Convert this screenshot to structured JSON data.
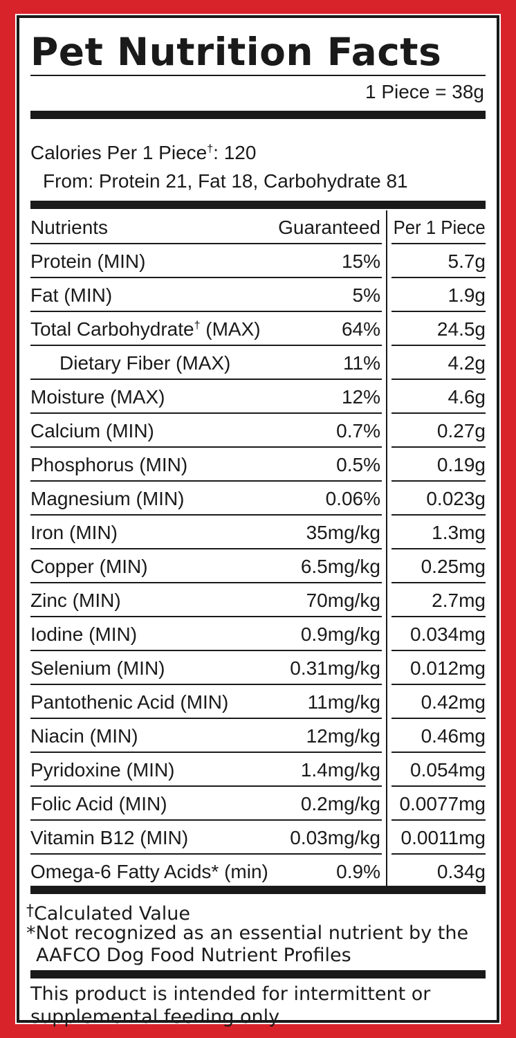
{
  "title": "Pet Nutrition Facts",
  "serving": "1 Piece = 38g",
  "calories": {
    "line_prefix": "Calories Per 1 Piece",
    "dagger": "†",
    "line_suffix": ": 120",
    "from": "From: Protein 21, Fat 18, Carbohydrate 81"
  },
  "table": {
    "headers": {
      "nutrient": "Nutrients",
      "guaranteed": "Guaranteed",
      "per_piece": "Per 1 Piece"
    },
    "rows": [
      {
        "name": "Protein (MIN)",
        "guaranteed": "15%",
        "per_piece": "5.7g"
      },
      {
        "name": "Fat (MIN)",
        "guaranteed": "5%",
        "per_piece": "1.9g"
      },
      {
        "name": "Total Carbohydrate",
        "name_sup": "†",
        "name_suffix": " (MAX)",
        "guaranteed": "64%",
        "per_piece": "24.5g"
      },
      {
        "name": "Dietary Fiber (MAX)",
        "guaranteed": "11%",
        "per_piece": "4.2g",
        "indent": true
      },
      {
        "name": "Moisture (MAX)",
        "guaranteed": "12%",
        "per_piece": "4.6g"
      },
      {
        "name": "Calcium (MIN)",
        "guaranteed": "0.7%",
        "per_piece": "0.27g"
      },
      {
        "name": "Phosphorus (MIN)",
        "guaranteed": "0.5%",
        "per_piece": "0.19g"
      },
      {
        "name": "Magnesium (MIN)",
        "guaranteed": "0.06%",
        "per_piece": "0.023g"
      },
      {
        "name": "Iron (MIN)",
        "guaranteed": "35mg/kg",
        "per_piece": "1.3mg"
      },
      {
        "name": "Copper (MIN)",
        "guaranteed": "6.5mg/kg",
        "per_piece": "0.25mg"
      },
      {
        "name": "Zinc (MIN)",
        "guaranteed": "70mg/kg",
        "per_piece": "2.7mg"
      },
      {
        "name": "Iodine (MIN)",
        "guaranteed": "0.9mg/kg",
        "per_piece": "0.034mg"
      },
      {
        "name": "Selenium (MIN)",
        "guaranteed": "0.31mg/kg",
        "per_piece": "0.012mg"
      },
      {
        "name": "Pantothenic Acid (MIN)",
        "guaranteed": "11mg/kg",
        "per_piece": "0.42mg"
      },
      {
        "name": "Niacin (MIN)",
        "guaranteed": "12mg/kg",
        "per_piece": "0.46mg"
      },
      {
        "name": "Pyridoxine (MIN)",
        "guaranteed": "1.4mg/kg",
        "per_piece": "0.054mg"
      },
      {
        "name": "Folic Acid (MIN)",
        "guaranteed": "0.2mg/kg",
        "per_piece": "0.0077mg"
      },
      {
        "name": "Vitamin B12 (MIN)",
        "guaranteed": "0.03mg/kg",
        "per_piece": "0.0011mg"
      },
      {
        "name": "Omega-6 Fatty Acids* (min)",
        "guaranteed": "0.9%",
        "per_piece": "0.34g"
      }
    ]
  },
  "footnotes": {
    "calculated_symbol": "†",
    "calculated": "Calculated Value",
    "essential_line1": "*Not recognized as an essential nutrient by the",
    "essential_line2": "AAFCO Dog Food Nutrient Profiles"
  },
  "notice_line1": "This product is intended for intermittent or",
  "notice_line2": "supplemental feeding only.",
  "colors": {
    "border_red": "#d9232b",
    "ink": "#1a1a1a",
    "panel": "#ffffff"
  }
}
